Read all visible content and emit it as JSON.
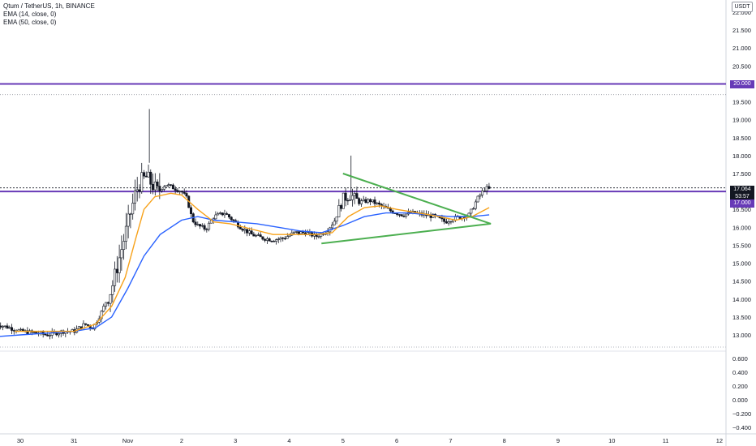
{
  "legend": {
    "symbol": "Qtum / TetherUS, 1h, BINANCE",
    "ema_fast": "EMA (14, close, 0)",
    "ema_slow": "EMA (50, close, 0)"
  },
  "axis": {
    "unit": "USDT",
    "price_ticks": [
      "22.000",
      "21.500",
      "21.000",
      "20.500",
      "20.000",
      "19.500",
      "19.000",
      "18.500",
      "18.000",
      "17.500",
      "17.000",
      "16.500",
      "16.000",
      "15.500",
      "15.000",
      "14.500",
      "14.000",
      "13.500",
      "13.000"
    ],
    "osc_ticks": [
      "0.600",
      "0.400",
      "0.200",
      "0.000",
      "−0.200",
      "−0.400"
    ],
    "time_ticks": [
      "30",
      "31",
      "Nov",
      "2",
      "3",
      "4",
      "5",
      "6",
      "7",
      "8",
      "9",
      "10",
      "11",
      "12"
    ]
  },
  "tags": {
    "level_20": "20.000",
    "last_price": "17.064",
    "countdown": "53:57",
    "level_17": "17.000"
  },
  "colors": {
    "up": "#131722",
    "down": "#131722",
    "ema_fast": "#f7a21b",
    "ema_slow": "#2962ff",
    "level_line": "#673ab7",
    "triangle": "#4caf50"
  },
  "chart_data": {
    "type": "candlestick",
    "ylim": [
      12.7,
      22.2
    ],
    "osc_ylim": [
      -0.5,
      0.7
    ],
    "levels": [
      20.0,
      17.0
    ],
    "last_price": 17.064,
    "x_day_labels": [
      "30",
      "31",
      "Nov",
      "2",
      "3",
      "4",
      "5",
      "6",
      "7",
      "8",
      "9",
      "10",
      "11",
      "12"
    ],
    "trend_lines": [
      {
        "from": [
          6.0,
          17.5
        ],
        "to": [
          8.75,
          16.1
        ]
      },
      {
        "from": [
          5.6,
          15.55
        ],
        "to": [
          8.75,
          16.1
        ]
      }
    ],
    "price_path": [
      [
        -0.45,
        13.3
      ],
      [
        -0.2,
        13.2
      ],
      [
        0.0,
        13.1
      ],
      [
        0.3,
        13.05
      ],
      [
        0.5,
        13.0
      ],
      [
        0.8,
        13.1
      ],
      [
        1.0,
        13.1
      ],
      [
        1.2,
        13.3
      ],
      [
        1.35,
        13.2
      ],
      [
        1.5,
        13.6
      ],
      [
        1.7,
        14.3
      ],
      [
        1.85,
        15.2
      ],
      [
        1.95,
        15.8
      ],
      [
        2.05,
        16.4
      ],
      [
        2.15,
        17.0
      ],
      [
        2.25,
        17.3
      ],
      [
        2.35,
        17.4
      ],
      [
        2.45,
        17.2
      ],
      [
        2.55,
        17.0
      ],
      [
        2.7,
        17.2
      ],
      [
        2.85,
        17.1
      ],
      [
        3.0,
        17.0
      ],
      [
        3.1,
        16.8
      ],
      [
        3.2,
        16.2
      ],
      [
        3.3,
        16.05
      ],
      [
        3.45,
        15.95
      ],
      [
        3.6,
        16.3
      ],
      [
        3.8,
        16.4
      ],
      [
        3.95,
        16.2
      ],
      [
        4.1,
        16.0
      ],
      [
        4.3,
        15.8
      ],
      [
        4.5,
        15.7
      ],
      [
        4.7,
        15.65
      ],
      [
        4.9,
        15.7
      ],
      [
        5.1,
        15.85
      ],
      [
        5.3,
        15.85
      ],
      [
        5.5,
        15.75
      ],
      [
        5.7,
        15.9
      ],
      [
        5.85,
        16.2
      ],
      [
        6.0,
        16.8
      ],
      [
        6.15,
        16.9
      ],
      [
        6.3,
        16.7
      ],
      [
        6.5,
        16.75
      ],
      [
        6.7,
        16.6
      ],
      [
        6.9,
        16.45
      ],
      [
        7.1,
        16.35
      ],
      [
        7.3,
        16.4
      ],
      [
        7.5,
        16.35
      ],
      [
        7.7,
        16.3
      ],
      [
        7.9,
        16.15
      ],
      [
        8.05,
        16.25
      ],
      [
        8.2,
        16.3
      ],
      [
        8.35,
        16.35
      ],
      [
        8.5,
        16.8
      ],
      [
        8.65,
        17.1
      ],
      [
        8.72,
        17.06
      ]
    ],
    "ema_fast": [
      [
        -0.1,
        13.1
      ],
      [
        0.4,
        13.1
      ],
      [
        1.0,
        13.1
      ],
      [
        1.4,
        13.3
      ],
      [
        1.7,
        13.8
      ],
      [
        1.95,
        14.6
      ],
      [
        2.15,
        15.7
      ],
      [
        2.3,
        16.5
      ],
      [
        2.5,
        16.85
      ],
      [
        2.8,
        16.95
      ],
      [
        3.0,
        16.9
      ],
      [
        3.3,
        16.5
      ],
      [
        3.6,
        16.15
      ],
      [
        3.9,
        16.1
      ],
      [
        4.3,
        15.95
      ],
      [
        4.7,
        15.8
      ],
      [
        5.1,
        15.8
      ],
      [
        5.5,
        15.8
      ],
      [
        5.8,
        15.85
      ],
      [
        6.1,
        16.3
      ],
      [
        6.4,
        16.55
      ],
      [
        6.7,
        16.6
      ],
      [
        7.0,
        16.5
      ],
      [
        7.4,
        16.4
      ],
      [
        7.8,
        16.3
      ],
      [
        8.1,
        16.2
      ],
      [
        8.4,
        16.3
      ],
      [
        8.72,
        16.55
      ]
    ],
    "ema_slow": [
      [
        -0.45,
        12.95
      ],
      [
        0.0,
        13.0
      ],
      [
        0.5,
        13.05
      ],
      [
        1.0,
        13.1
      ],
      [
        1.4,
        13.2
      ],
      [
        1.7,
        13.5
      ],
      [
        2.0,
        14.3
      ],
      [
        2.3,
        15.2
      ],
      [
        2.6,
        15.8
      ],
      [
        3.0,
        16.2
      ],
      [
        3.3,
        16.3
      ],
      [
        3.6,
        16.2
      ],
      [
        4.0,
        16.15
      ],
      [
        4.4,
        16.1
      ],
      [
        4.8,
        16.0
      ],
      [
        5.2,
        15.9
      ],
      [
        5.6,
        15.85
      ],
      [
        6.0,
        16.05
      ],
      [
        6.4,
        16.3
      ],
      [
        6.8,
        16.4
      ],
      [
        7.2,
        16.4
      ],
      [
        7.6,
        16.35
      ],
      [
        8.0,
        16.3
      ],
      [
        8.4,
        16.3
      ],
      [
        8.72,
        16.35
      ]
    ]
  }
}
